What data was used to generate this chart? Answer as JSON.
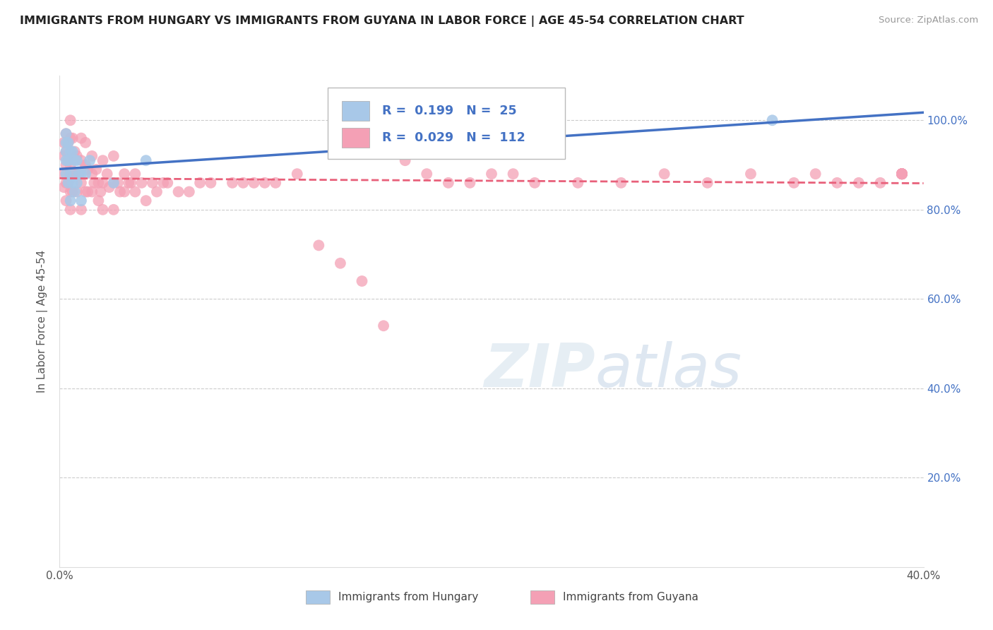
{
  "title": "IMMIGRANTS FROM HUNGARY VS IMMIGRANTS FROM GUYANA IN LABOR FORCE | AGE 45-54 CORRELATION CHART",
  "source": "Source: ZipAtlas.com",
  "ylabel_label": "In Labor Force | Age 45-54",
  "x_min": 0.0,
  "x_max": 0.4,
  "y_min": 0.0,
  "y_max": 1.1,
  "hungary_R": 0.199,
  "hungary_N": 25,
  "guyana_R": 0.029,
  "guyana_N": 112,
  "hungary_color": "#a8c8e8",
  "guyana_color": "#f4a0b5",
  "hungary_line_color": "#4472c4",
  "guyana_line_color": "#e8607a",
  "hungary_x": [
    0.003,
    0.003,
    0.003,
    0.003,
    0.003,
    0.004,
    0.004,
    0.004,
    0.005,
    0.005,
    0.005,
    0.006,
    0.006,
    0.007,
    0.007,
    0.008,
    0.008,
    0.009,
    0.01,
    0.01,
    0.012,
    0.014,
    0.025,
    0.04,
    0.33
  ],
  "hungary_y": [
    0.97,
    0.95,
    0.93,
    0.91,
    0.88,
    0.95,
    0.91,
    0.86,
    0.93,
    0.88,
    0.82,
    0.93,
    0.86,
    0.91,
    0.84,
    0.91,
    0.86,
    0.88,
    0.88,
    0.82,
    0.88,
    0.91,
    0.86,
    0.91,
    1.0
  ],
  "guyana_x": [
    0.002,
    0.002,
    0.002,
    0.002,
    0.003,
    0.003,
    0.003,
    0.003,
    0.003,
    0.004,
    0.004,
    0.004,
    0.005,
    0.005,
    0.005,
    0.005,
    0.005,
    0.005,
    0.005,
    0.006,
    0.006,
    0.006,
    0.006,
    0.007,
    0.007,
    0.008,
    0.008,
    0.008,
    0.009,
    0.01,
    0.01,
    0.01,
    0.01,
    0.012,
    0.012,
    0.012,
    0.013,
    0.013,
    0.015,
    0.015,
    0.015,
    0.016,
    0.017,
    0.018,
    0.018,
    0.019,
    0.02,
    0.02,
    0.02,
    0.022,
    0.023,
    0.025,
    0.025,
    0.025,
    0.027,
    0.028,
    0.03,
    0.03,
    0.032,
    0.033,
    0.035,
    0.035,
    0.038,
    0.04,
    0.043,
    0.045,
    0.048,
    0.05,
    0.055,
    0.06,
    0.065,
    0.07,
    0.08,
    0.085,
    0.09,
    0.095,
    0.1,
    0.11,
    0.12,
    0.13,
    0.14,
    0.15,
    0.16,
    0.17,
    0.18,
    0.19,
    0.2,
    0.21,
    0.22,
    0.24,
    0.26,
    0.28,
    0.3,
    0.32,
    0.34,
    0.35,
    0.36,
    0.37,
    0.38,
    0.39,
    0.39,
    0.39,
    0.39,
    0.39,
    0.39,
    0.39,
    0.39,
    0.39,
    0.39,
    0.39,
    0.39,
    0.39
  ],
  "guyana_y": [
    0.95,
    0.92,
    0.88,
    0.85,
    0.97,
    0.93,
    0.9,
    0.86,
    0.82,
    0.95,
    0.91,
    0.86,
    1.0,
    0.96,
    0.93,
    0.9,
    0.87,
    0.84,
    0.8,
    0.96,
    0.92,
    0.88,
    0.84,
    0.93,
    0.88,
    0.92,
    0.88,
    0.84,
    0.88,
    0.96,
    0.91,
    0.86,
    0.8,
    0.95,
    0.9,
    0.84,
    0.89,
    0.84,
    0.92,
    0.88,
    0.84,
    0.86,
    0.89,
    0.86,
    0.82,
    0.84,
    0.91,
    0.86,
    0.8,
    0.88,
    0.85,
    0.92,
    0.86,
    0.8,
    0.86,
    0.84,
    0.88,
    0.84,
    0.86,
    0.86,
    0.88,
    0.84,
    0.86,
    0.82,
    0.86,
    0.84,
    0.86,
    0.86,
    0.84,
    0.84,
    0.86,
    0.86,
    0.86,
    0.86,
    0.86,
    0.86,
    0.86,
    0.88,
    0.72,
    0.68,
    0.64,
    0.54,
    0.91,
    0.88,
    0.86,
    0.86,
    0.88,
    0.88,
    0.86,
    0.86,
    0.86,
    0.88,
    0.86,
    0.88,
    0.86,
    0.88,
    0.86,
    0.86,
    0.86,
    0.88,
    0.88,
    0.88,
    0.88,
    0.88,
    0.88,
    0.88,
    0.88,
    0.88,
    0.88,
    0.88,
    0.88,
    0.88
  ]
}
